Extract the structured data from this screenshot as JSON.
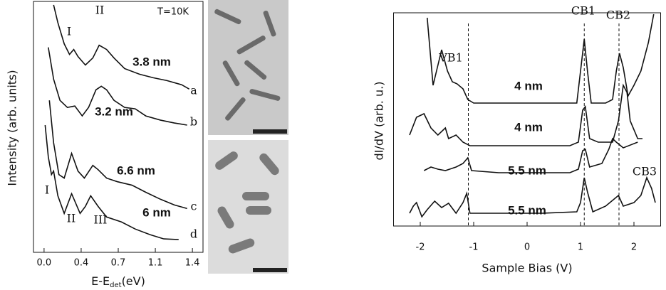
{
  "chart_data": [
    {
      "type": "line",
      "ylabel": "Intensity (arb. units)",
      "xlabel_parts": [
        "E-E",
        "det",
        "(eV)"
      ],
      "xlim": [
        -0.1,
        1.5
      ],
      "ylim": [
        0,
        355
      ],
      "xticks": [
        {
          "value": 0,
          "label": "0.0"
        },
        {
          "value": 0.35,
          "label": "0.4"
        },
        {
          "value": 0.7,
          "label": "0.7"
        },
        {
          "value": 1.05,
          "label": "1.1"
        },
        {
          "value": 1.4,
          "label": "1.4"
        }
      ],
      "series": [
        {
          "name": "a",
          "color": "#111",
          "x": [
            0.09,
            0.13,
            0.19,
            0.24,
            0.28,
            0.32,
            0.39,
            0.46,
            0.52,
            0.59,
            0.66,
            0.76,
            0.9,
            1.03,
            1.16,
            1.3,
            1.37
          ],
          "values": [
            350,
            325,
            295,
            280,
            287,
            277,
            265,
            275,
            293,
            287,
            275,
            260,
            252,
            247,
            243,
            237,
            231
          ]
        },
        {
          "name": "b",
          "color": "#111",
          "x": [
            0.04,
            0.09,
            0.15,
            0.22,
            0.29,
            0.36,
            0.42,
            0.49,
            0.54,
            0.59,
            0.66,
            0.76,
            0.86,
            0.96,
            1.1,
            1.23,
            1.35
          ],
          "values": [
            290,
            245,
            215,
            205,
            207,
            193,
            205,
            230,
            235,
            230,
            215,
            205,
            203,
            193,
            187,
            183,
            180
          ]
        },
        {
          "name": "c",
          "color": "#111",
          "x": [
            0.05,
            0.09,
            0.14,
            0.19,
            0.26,
            0.32,
            0.38,
            0.46,
            0.51,
            0.59,
            0.69,
            0.83,
            0.96,
            1.1,
            1.23,
            1.35
          ],
          "values": [
            215,
            155,
            110,
            105,
            140,
            115,
            105,
            123,
            117,
            105,
            100,
            95,
            85,
            75,
            67,
            62
          ]
        },
        {
          "name": "d",
          "color": "#111",
          "x": [
            0.01,
            0.04,
            0.07,
            0.09,
            0.13,
            0.19,
            0.26,
            0.34,
            0.39,
            0.44,
            0.51,
            0.59,
            0.73,
            0.86,
            1.0,
            1.13,
            1.27
          ],
          "values": [
            180,
            135,
            110,
            115,
            80,
            55,
            83,
            55,
            65,
            80,
            65,
            50,
            43,
            33,
            25,
            19,
            18
          ]
        }
      ],
      "annotations": [
        {
          "text": "T=10K"
        },
        {
          "text": "I"
        },
        {
          "text": "II"
        },
        {
          "text": "3.8 nm",
          "color": "#e8231f"
        },
        {
          "text": "3.2 nm",
          "color": "#e8231f"
        },
        {
          "text": "6.6 nm",
          "color": "#e8231f"
        },
        {
          "text": "I"
        },
        {
          "text": "II"
        },
        {
          "text": "III"
        },
        {
          "text": "6 nm",
          "color": "#e8231f"
        }
      ]
    },
    {
      "type": "line",
      "ylabel": "dI/dV (arb. u.)",
      "xlabel": "Sample Bias (V)",
      "xlim": [
        -2.5,
        2.5
      ],
      "ylim": [
        0,
        300
      ],
      "xticks": [
        -2,
        -1,
        0,
        1,
        2
      ],
      "reference_lines": {
        "x": [
          -1.1,
          1.07,
          1.72
        ],
        "style": "dashed"
      },
      "series": [
        {
          "color": "#111",
          "x": [
            -1.87,
            -1.76,
            -1.6,
            -1.49,
            -1.4,
            -1.31,
            -1.2,
            -1.11,
            -1,
            -0.53,
            0.27,
            0.93,
            1,
            1.07,
            1.13,
            1.2,
            1.47,
            1.6,
            1.67,
            1.73,
            1.8,
            1.89,
            2,
            2.13,
            2.27,
            2.37
          ],
          "values": [
            293,
            198,
            248,
            218,
            203,
            200,
            193,
            178,
            173,
            173,
            173,
            173,
            218,
            263,
            218,
            173,
            173,
            178,
            218,
            243,
            223,
            183,
            198,
            218,
            258,
            298
          ]
        },
        {
          "color": "#111",
          "x": [
            -2.2,
            -2.07,
            -1.93,
            -1.8,
            -1.67,
            -1.53,
            -1.47,
            -1.33,
            -1.2,
            -1.07,
            -0.53,
            0.27,
            0.8,
            0.96,
            1.04,
            1.09,
            1.17,
            1.33,
            1.6,
            1.71,
            1.8,
            1.87,
            1.93,
            2.07,
            2.16
          ],
          "values": [
            128,
            153,
            158,
            138,
            128,
            138,
            123,
            128,
            118,
            113,
            113,
            113,
            113,
            118,
            163,
            168,
            123,
            118,
            118,
            148,
            198,
            188,
            148,
            123,
            123
          ]
        },
        {
          "color": "#111",
          "x": [
            -1.93,
            -1.8,
            -1.67,
            -1.53,
            -1.33,
            -1.2,
            -1.11,
            -1.04,
            -0.53,
            0.27,
            0.8,
            0.96,
            1.04,
            1.09,
            1.17,
            1.4,
            1.53,
            1.6,
            1.67,
            1.8,
            2.07
          ],
          "values": [
            78,
            83,
            80,
            78,
            83,
            88,
            96,
            78,
            75,
            75,
            75,
            80,
            106,
            108,
            83,
            88,
            108,
            123,
            118,
            110,
            118
          ]
        },
        {
          "color": "#111",
          "x": [
            -2.2,
            -2.13,
            -2.07,
            -1.97,
            -1.87,
            -1.73,
            -1.6,
            -1.47,
            -1.33,
            -1.2,
            -1.13,
            -1.07,
            -0.53,
            0.27,
            0.93,
            1,
            1.07,
            1.13,
            1.23,
            1.47,
            1.63,
            1.71,
            1.8,
            2,
            2.13,
            2.24,
            2.33,
            2.4
          ],
          "values": [
            18,
            28,
            33,
            13,
            23,
            35,
            26,
            32,
            18,
            33,
            46,
            18,
            18,
            18,
            20,
            33,
            68,
            48,
            20,
            28,
            38,
            43,
            28,
            33,
            43,
            68,
            53,
            33
          ]
        }
      ],
      "annotations": [
        {
          "text": "VB1"
        },
        {
          "text": "CB1"
        },
        {
          "text": "CB2"
        },
        {
          "text": "CB3"
        },
        {
          "text": "4 nm",
          "color": "#e8231f"
        },
        {
          "text": "4 nm",
          "color": "#e8231f"
        },
        {
          "text": "5.5 nm",
          "color": "#e8231f"
        },
        {
          "text": "5.5 nm",
          "color": "#e8231f"
        }
      ]
    }
  ]
}
